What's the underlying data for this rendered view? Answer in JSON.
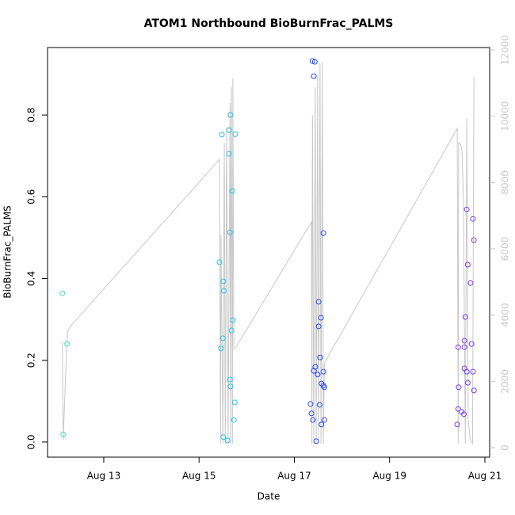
{
  "chart_data": {
    "type": "scatter",
    "title": "ATOM1 Northbound BioBurnFrac_PALMS",
    "xlabel": "Date",
    "ylabel": "BioBurnFrac_PALMS",
    "xlim": [
      11.82,
      21.1
    ],
    "xticks": [
      {
        "value": 13,
        "label": "Aug 13"
      },
      {
        "value": 15,
        "label": "Aug 15"
      },
      {
        "value": 17,
        "label": "Aug 17"
      },
      {
        "value": 19,
        "label": "Aug 19"
      },
      {
        "value": 21,
        "label": "Aug 21"
      }
    ],
    "ylim": [
      -0.037,
      0.965
    ],
    "yticks": [
      {
        "value": 0,
        "label": "0.0"
      },
      0.2,
      0.4,
      0.6,
      0.8
    ],
    "y2lim": [
      -287,
      12072
    ],
    "y2ticks": [
      0,
      2000,
      4000,
      6000,
      8000,
      10000,
      12000
    ],
    "y2color": "#c8c8c8",
    "series": [
      {
        "type": "line",
        "axis": "y2",
        "color": "#c8c8c8",
        "x": [
          12.13,
          12.15,
          12.22,
          12.24,
          12.28,
          15.43,
          15.45,
          15.46,
          15.5,
          15.53,
          15.55,
          15.58,
          15.61,
          15.65,
          15.66,
          15.68,
          15.7,
          15.71,
          15.73,
          15.76,
          17.36,
          17.37,
          17.38,
          17.41,
          17.44,
          17.46,
          17.49,
          17.51,
          17.54,
          17.56,
          17.59,
          17.61,
          17.63,
          17.66,
          20.42,
          20.44,
          20.45,
          20.49,
          20.52,
          20.55,
          20.59,
          20.62,
          20.65,
          20.69,
          20.74,
          20.77
        ],
        "values": [
          3180,
          240,
          2990,
          3470,
          3630,
          8700,
          120,
          6430,
          120,
          9200,
          120,
          9680,
          120,
          10400,
          120,
          10870,
          120,
          11160,
          2990,
          2990,
          6810,
          120,
          10040,
          120,
          10870,
          120,
          11230,
          120,
          11590,
          120,
          11640,
          120,
          2510,
          2630,
          9630,
          120,
          9200,
          9150,
          8960,
          7530,
          120,
          9920,
          840,
          240,
          120,
          11190
        ]
      },
      {
        "type": "scatter",
        "color": "#3de8b8",
        "x": [
          12.13,
          12.23,
          12.15
        ],
        "values": [
          0.364,
          0.24,
          0.019
        ]
      },
      {
        "type": "scatter",
        "color": "#29c2e6",
        "x": [
          15.48,
          15.63,
          15.66,
          15.63,
          15.76,
          15.7,
          15.65,
          15.43,
          15.51,
          15.52,
          15.71,
          15.68,
          15.5,
          15.46,
          15.65,
          15.66,
          15.75,
          15.73,
          15.51,
          15.6
        ],
        "values": [
          0.752,
          0.705,
          0.8,
          0.763,
          0.753,
          0.614,
          0.513,
          0.44,
          0.393,
          0.37,
          0.298,
          0.273,
          0.254,
          0.229,
          0.153,
          0.136,
          0.097,
          0.054,
          0.012,
          0.004
        ]
      },
      {
        "type": "scatter",
        "color": "#2a4de6",
        "x": [
          17.38,
          17.43,
          17.41,
          17.61,
          17.51,
          17.56,
          17.51,
          17.54,
          17.44,
          17.41,
          17.61,
          17.49,
          17.57,
          17.61,
          17.63,
          17.34,
          17.53,
          17.36,
          17.39,
          17.63,
          17.57,
          17.46
        ],
        "values": [
          0.932,
          0.93,
          0.895,
          0.511,
          0.343,
          0.304,
          0.283,
          0.207,
          0.184,
          0.174,
          0.172,
          0.165,
          0.143,
          0.138,
          0.134,
          0.093,
          0.091,
          0.07,
          0.054,
          0.054,
          0.043,
          0.002
        ]
      },
      {
        "type": "scatter",
        "color": "#7a3de6",
        "x": [
          20.62,
          20.75,
          20.77,
          20.64,
          20.7,
          20.59,
          20.57,
          20.72,
          20.44,
          20.57,
          20.57,
          20.62,
          20.75,
          20.64,
          20.45,
          20.77,
          20.44,
          20.51,
          20.56,
          20.42
        ],
        "values": [
          0.569,
          0.546,
          0.494,
          0.434,
          0.389,
          0.306,
          0.248,
          0.24,
          0.232,
          0.232,
          0.18,
          0.172,
          0.172,
          0.145,
          0.134,
          0.126,
          0.081,
          0.074,
          0.068,
          0.043
        ]
      }
    ]
  }
}
